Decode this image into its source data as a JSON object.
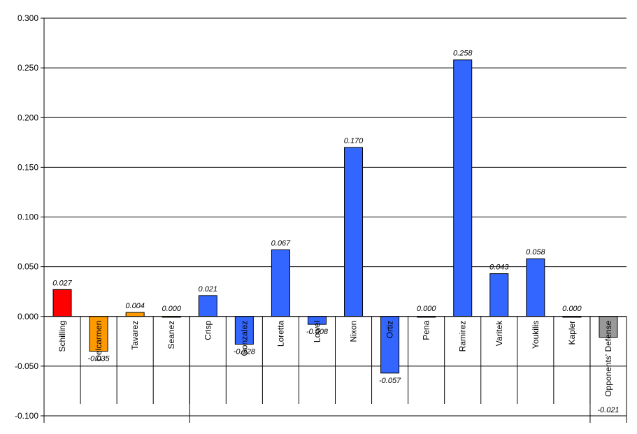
{
  "chart_data": {
    "type": "bar",
    "title": "",
    "xlabel": "",
    "ylabel": "",
    "ylim": [
      -0.1,
      0.3
    ],
    "yticks": [
      "0.300",
      "0.250",
      "0.200",
      "0.150",
      "0.100",
      "0.050",
      "0.000",
      "-0.050",
      "-0.100"
    ],
    "ytick_values": [
      0.3,
      0.25,
      0.2,
      0.15,
      0.1,
      0.05,
      0,
      -0.05,
      -0.1
    ],
    "grid": true,
    "legend": "none",
    "colors": {
      "red": "#FF0000",
      "orange": "#FF9900",
      "blue": "#3366FF",
      "gray": "#999999"
    },
    "categories": [
      "Schilling",
      "Delcarmen",
      "Tavarez",
      "Seanez",
      "Crisp",
      "Gonzalez",
      "Loretta",
      "Lowel",
      "Nixon",
      "Ortiz",
      "Pena",
      "Ramirez",
      "Varitek",
      "Youkilis",
      "Kapler",
      "Opponents' Defense"
    ],
    "values": [
      0.027,
      -0.035,
      0.004,
      0.0,
      0.021,
      -0.028,
      0.067,
      -0.008,
      0.17,
      -0.057,
      0.0,
      0.258,
      0.043,
      0.058,
      0.0,
      -0.021
    ],
    "data_labels": [
      "0.027",
      "-0.035",
      "0.004",
      "0.000",
      "0.021",
      "-0.028",
      "0.067",
      "-0.008",
      "0.170",
      "-0.057",
      "0.000",
      "0.258",
      "0.043",
      "0.058",
      "0.000",
      "-0.021"
    ],
    "bar_colors": [
      "#FF0000",
      "#FF9900",
      "#FF9900",
      "#FF9900",
      "#3366FF",
      "#3366FF",
      "#3366FF",
      "#3366FF",
      "#3366FF",
      "#3366FF",
      "#3366FF",
      "#3366FF",
      "#3366FF",
      "#3366FF",
      "#3366FF",
      "#999999"
    ]
  }
}
